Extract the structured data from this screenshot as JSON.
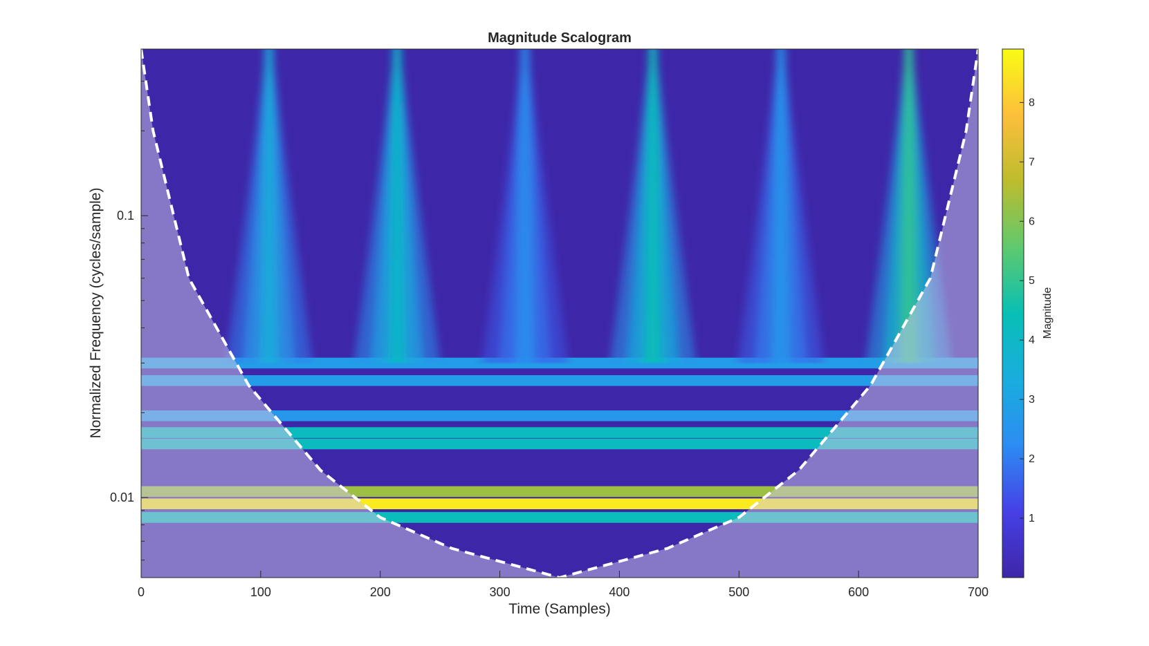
{
  "chart_data": {
    "type": "heatmap",
    "title": "Magnitude Scalogram",
    "xlabel": "Time (Samples)",
    "ylabel": "Normalized Frequency  (cycles/sample)",
    "xlim": [
      0,
      700
    ],
    "ylim": [
      0.0052,
      0.39
    ],
    "yscale": "log",
    "xticks": [
      "0",
      "100",
      "200",
      "300",
      "400",
      "500",
      "600",
      "700"
    ],
    "yticks": [
      "0.01",
      "0.1"
    ],
    "colorbar": {
      "label": "Magnitude",
      "range": [
        0,
        8.9
      ],
      "ticks": [
        "1",
        "2",
        "3",
        "4",
        "5",
        "6",
        "7",
        "8"
      ],
      "colormap": "parula"
    },
    "transient_times": [
      107,
      214,
      321,
      428,
      535,
      642
    ],
    "transient_peak_magnitudes": [
      3.0,
      3.6,
      2.0,
      4.0,
      2.2,
      4.6
    ],
    "tone_bands": [
      {
        "frequency": 0.0095,
        "magnitude": 8.6
      },
      {
        "frequency": 0.0105,
        "magnitude": 6.3
      },
      {
        "frequency": 0.0085,
        "magnitude": 4.3
      },
      {
        "frequency": 0.017,
        "magnitude": 4.2
      },
      {
        "frequency": 0.0155,
        "magnitude": 4.2
      },
      {
        "frequency": 0.0195,
        "magnitude": 2.6
      },
      {
        "frequency": 0.026,
        "magnitude": 2.8
      },
      {
        "frequency": 0.03,
        "magnitude": 2.8
      }
    ],
    "cone_of_influence": {
      "style": "white dashed",
      "points": [
        [
          0,
          0.39
        ],
        [
          10,
          0.2
        ],
        [
          40,
          0.06
        ],
        [
          90,
          0.025
        ],
        [
          150,
          0.0125
        ],
        [
          200,
          0.0085
        ],
        [
          260,
          0.0066
        ],
        [
          350,
          0.0052
        ],
        [
          440,
          0.0066
        ],
        [
          500,
          0.0085
        ],
        [
          550,
          0.0125
        ],
        [
          610,
          0.025
        ],
        [
          660,
          0.06
        ],
        [
          690,
          0.2
        ],
        [
          700,
          0.39
        ]
      ]
    }
  },
  "colors": {
    "background": "#ffffff",
    "axis": "#262626",
    "cone_line": "#ffffff",
    "cone_shade": "#d0c8e6"
  }
}
